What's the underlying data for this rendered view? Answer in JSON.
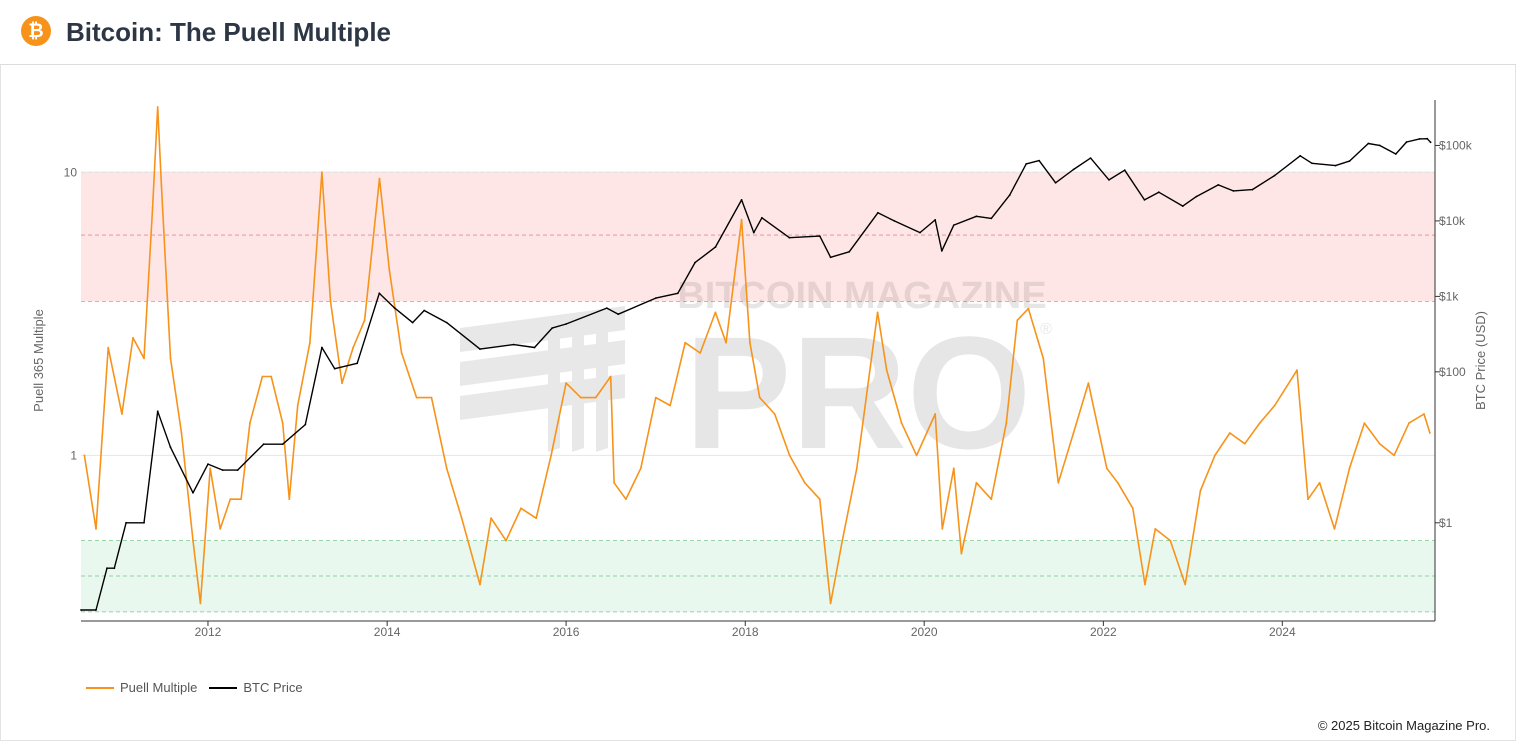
{
  "header": {
    "logo_glyph": "₿",
    "logo_icon": "bitcoin-icon",
    "title": "Bitcoin: The Puell Multiple"
  },
  "watermark": {
    "top": "BITCOIN MAGAZINE",
    "main": "PRO",
    "mark": "®"
  },
  "legend": [
    {
      "label": "Puell Multiple",
      "color": "#f7931a"
    },
    {
      "label": "BTC Price",
      "color": "#000000"
    }
  ],
  "copyright": "© 2025 Bitcoin Magazine Pro.",
  "chart_data": {
    "type": "line",
    "x_range": [
      "2010-08-01",
      "2025-09-15"
    ],
    "x_ticks": [
      "2012",
      "2014",
      "2016",
      "2018",
      "2020",
      "2022",
      "2024"
    ],
    "left_axis": {
      "label": "Puell 365 Multiple",
      "scale": "log",
      "range": [
        0.26,
        18
      ],
      "ticks": [
        {
          "value": 10,
          "label": "10"
        },
        {
          "value": 1,
          "label": "1"
        }
      ]
    },
    "right_axis": {
      "label": "BTC Price (USD)",
      "scale": "log",
      "range": [
        0.05,
        400000
      ],
      "ticks": [
        {
          "value": 100000,
          "label": "$100k"
        },
        {
          "value": 10000,
          "label": "$10k"
        },
        {
          "value": 1000,
          "label": "$1k"
        },
        {
          "value": 100,
          "label": "$100"
        },
        {
          "value": 1,
          "label": "$1"
        }
      ]
    },
    "bands": [
      {
        "zone": "high",
        "from": 3.5,
        "to": 10,
        "mid": 6,
        "color": "#ffe6e6"
      },
      {
        "zone": "low",
        "from": 0.28,
        "to": 0.5,
        "mid": 0.375,
        "color": "#e8f8ee"
      }
    ],
    "grid": true,
    "legend_position": "bottom-left",
    "series": [
      {
        "name": "Puell Multiple",
        "color": "#f7931a",
        "axis": "left",
        "points": [
          [
            "2010-08-15",
            1.0
          ],
          [
            "2010-10-01",
            0.55
          ],
          [
            "2010-11-20",
            2.4
          ],
          [
            "2011-01-15",
            1.4
          ],
          [
            "2011-03-01",
            2.6
          ],
          [
            "2011-04-15",
            2.2
          ],
          [
            "2011-05-20",
            7.5
          ],
          [
            "2011-06-10",
            17.0
          ],
          [
            "2011-06-25",
            9.0
          ],
          [
            "2011-08-01",
            2.2
          ],
          [
            "2011-09-15",
            1.2
          ],
          [
            "2011-11-01",
            0.5
          ],
          [
            "2011-12-01",
            0.3
          ],
          [
            "2012-01-10",
            0.9
          ],
          [
            "2012-02-20",
            0.55
          ],
          [
            "2012-04-01",
            0.7
          ],
          [
            "2012-05-15",
            0.7
          ],
          [
            "2012-06-20",
            1.3
          ],
          [
            "2012-08-10",
            1.9
          ],
          [
            "2012-09-15",
            1.9
          ],
          [
            "2012-11-01",
            1.3
          ],
          [
            "2012-11-28",
            0.7
          ],
          [
            "2013-01-01",
            1.5
          ],
          [
            "2013-02-20",
            2.5
          ],
          [
            "2013-04-10",
            10.0
          ],
          [
            "2013-05-15",
            3.5
          ],
          [
            "2013-07-01",
            1.8
          ],
          [
            "2013-08-15",
            2.4
          ],
          [
            "2013-10-01",
            3.0
          ],
          [
            "2013-12-01",
            9.5
          ],
          [
            "2014-01-10",
            4.5
          ],
          [
            "2014-03-01",
            2.3
          ],
          [
            "2014-05-01",
            1.6
          ],
          [
            "2014-07-01",
            1.6
          ],
          [
            "2014-09-01",
            0.9
          ],
          [
            "2014-11-01",
            0.6
          ],
          [
            "2015-01-15",
            0.35
          ],
          [
            "2015-03-01",
            0.6
          ],
          [
            "2015-05-01",
            0.5
          ],
          [
            "2015-07-01",
            0.65
          ],
          [
            "2015-09-01",
            0.6
          ],
          [
            "2015-11-01",
            1.0
          ],
          [
            "2016-01-01",
            1.8
          ],
          [
            "2016-03-01",
            1.6
          ],
          [
            "2016-05-01",
            1.6
          ],
          [
            "2016-07-01",
            1.9
          ],
          [
            "2016-07-15",
            0.8
          ],
          [
            "2016-09-01",
            0.7
          ],
          [
            "2016-11-01",
            0.9
          ],
          [
            "2017-01-01",
            1.6
          ],
          [
            "2017-03-01",
            1.5
          ],
          [
            "2017-05-01",
            2.5
          ],
          [
            "2017-07-01",
            2.3
          ],
          [
            "2017-09-01",
            3.2
          ],
          [
            "2017-10-15",
            2.5
          ],
          [
            "2017-12-17",
            6.8
          ],
          [
            "2018-01-20",
            2.5
          ],
          [
            "2018-03-01",
            1.6
          ],
          [
            "2018-05-01",
            1.4
          ],
          [
            "2018-07-01",
            1.0
          ],
          [
            "2018-09-01",
            0.8
          ],
          [
            "2018-11-01",
            0.7
          ],
          [
            "2018-12-15",
            0.3
          ],
          [
            "2019-02-01",
            0.5
          ],
          [
            "2019-04-01",
            0.9
          ],
          [
            "2019-06-25",
            3.2
          ],
          [
            "2019-08-01",
            2.0
          ],
          [
            "2019-10-01",
            1.3
          ],
          [
            "2019-12-01",
            1.0
          ],
          [
            "2020-02-15",
            1.4
          ],
          [
            "2020-03-15",
            0.55
          ],
          [
            "2020-05-01",
            0.9
          ],
          [
            "2020-06-01",
            0.45
          ],
          [
            "2020-08-01",
            0.8
          ],
          [
            "2020-10-01",
            0.7
          ],
          [
            "2020-12-01",
            1.3
          ],
          [
            "2021-01-15",
            3.0
          ],
          [
            "2021-03-01",
            3.3
          ],
          [
            "2021-05-01",
            2.2
          ],
          [
            "2021-07-01",
            0.8
          ],
          [
            "2021-09-01",
            1.2
          ],
          [
            "2021-11-01",
            1.8
          ],
          [
            "2022-01-15",
            0.9
          ],
          [
            "2022-03-01",
            0.8
          ],
          [
            "2022-05-01",
            0.65
          ],
          [
            "2022-06-20",
            0.35
          ],
          [
            "2022-08-01",
            0.55
          ],
          [
            "2022-10-01",
            0.5
          ],
          [
            "2022-12-01",
            0.35
          ],
          [
            "2023-02-01",
            0.75
          ],
          [
            "2023-04-01",
            1.0
          ],
          [
            "2023-06-01",
            1.2
          ],
          [
            "2023-08-01",
            1.1
          ],
          [
            "2023-10-01",
            1.3
          ],
          [
            "2023-12-01",
            1.5
          ],
          [
            "2024-03-01",
            2.0
          ],
          [
            "2024-04-15",
            0.7
          ],
          [
            "2024-06-01",
            0.8
          ],
          [
            "2024-08-01",
            0.55
          ],
          [
            "2024-10-01",
            0.9
          ],
          [
            "2024-12-01",
            1.3
          ],
          [
            "2025-02-01",
            1.1
          ],
          [
            "2025-04-01",
            1.0
          ],
          [
            "2025-06-01",
            1.3
          ],
          [
            "2025-08-01",
            1.4
          ],
          [
            "2025-08-25",
            1.2
          ]
        ]
      },
      {
        "name": "BTC Price",
        "color": "#000000",
        "axis": "right",
        "points": [
          [
            "2010-08-01",
            0.07
          ],
          [
            "2010-10-01",
            0.07
          ],
          [
            "2010-11-15",
            0.25
          ],
          [
            "2010-12-15",
            0.25
          ],
          [
            "2011-02-01",
            1.0
          ],
          [
            "2011-04-15",
            1.0
          ],
          [
            "2011-06-10",
            30
          ],
          [
            "2011-08-01",
            10
          ],
          [
            "2011-11-01",
            2.5
          ],
          [
            "2012-01-01",
            6
          ],
          [
            "2012-03-01",
            5
          ],
          [
            "2012-05-01",
            5
          ],
          [
            "2012-08-15",
            11
          ],
          [
            "2012-11-01",
            11
          ],
          [
            "2013-02-01",
            20
          ],
          [
            "2013-04-10",
            210
          ],
          [
            "2013-06-01",
            110
          ],
          [
            "2013-09-01",
            130
          ],
          [
            "2013-11-30",
            1100
          ],
          [
            "2014-02-01",
            700
          ],
          [
            "2014-04-15",
            450
          ],
          [
            "2014-06-01",
            650
          ],
          [
            "2014-09-01",
            450
          ],
          [
            "2015-01-15",
            200
          ],
          [
            "2015-06-01",
            230
          ],
          [
            "2015-08-25",
            210
          ],
          [
            "2015-11-05",
            380
          ],
          [
            "2016-01-01",
            430
          ],
          [
            "2016-06-15",
            700
          ],
          [
            "2016-08-01",
            580
          ],
          [
            "2017-01-01",
            950
          ],
          [
            "2017-04-01",
            1100
          ],
          [
            "2017-06-10",
            2800
          ],
          [
            "2017-09-01",
            4500
          ],
          [
            "2017-12-17",
            19000
          ],
          [
            "2018-02-05",
            7000
          ],
          [
            "2018-03-10",
            11000
          ],
          [
            "2018-06-30",
            6000
          ],
          [
            "2018-11-01",
            6300
          ],
          [
            "2018-12-15",
            3300
          ],
          [
            "2019-03-01",
            3900
          ],
          [
            "2019-06-26",
            12800
          ],
          [
            "2019-09-01",
            10000
          ],
          [
            "2019-12-15",
            7000
          ],
          [
            "2020-02-15",
            10300
          ],
          [
            "2020-03-13",
            4000
          ],
          [
            "2020-05-01",
            8800
          ],
          [
            "2020-08-01",
            11500
          ],
          [
            "2020-10-01",
            10800
          ],
          [
            "2020-12-15",
            22000
          ],
          [
            "2021-02-20",
            57000
          ],
          [
            "2021-04-14",
            63000
          ],
          [
            "2021-06-20",
            32000
          ],
          [
            "2021-09-01",
            48000
          ],
          [
            "2021-11-10",
            68000
          ],
          [
            "2022-01-24",
            35000
          ],
          [
            "2022-03-29",
            47000
          ],
          [
            "2022-06-18",
            19000
          ],
          [
            "2022-08-15",
            24000
          ],
          [
            "2022-11-21",
            15700
          ],
          [
            "2023-01-15",
            21000
          ],
          [
            "2023-04-15",
            30000
          ],
          [
            "2023-06-15",
            25000
          ],
          [
            "2023-09-01",
            26000
          ],
          [
            "2023-12-01",
            40000
          ],
          [
            "2024-03-14",
            73000
          ],
          [
            "2024-05-01",
            58000
          ],
          [
            "2024-08-05",
            54000
          ],
          [
            "2024-10-01",
            62000
          ],
          [
            "2024-12-17",
            106000
          ],
          [
            "2025-02-01",
            100000
          ],
          [
            "2025-04-08",
            77000
          ],
          [
            "2025-05-22",
            111000
          ],
          [
            "2025-07-14",
            122000
          ],
          [
            "2025-08-14",
            123000
          ],
          [
            "2025-08-28",
            110000
          ]
        ]
      }
    ]
  }
}
